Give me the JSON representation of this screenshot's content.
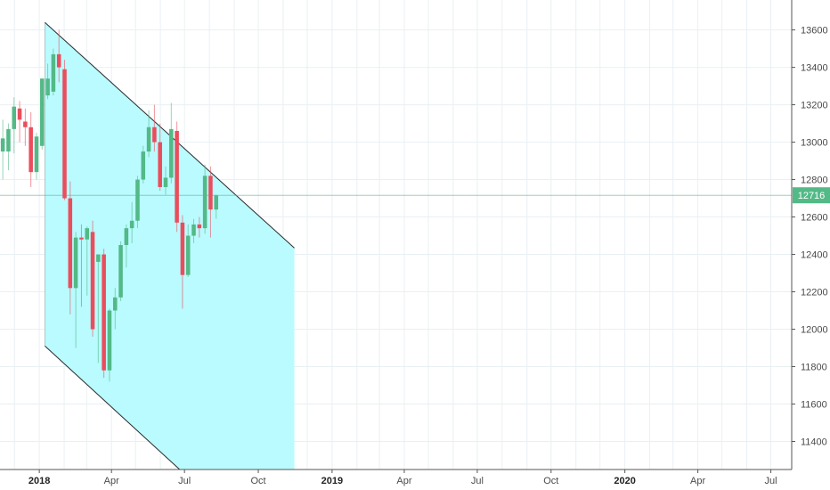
{
  "chart_data": {
    "type": "candlestick",
    "title": "",
    "xlabel": "",
    "ylabel": "",
    "ylim": [
      11250,
      13760
    ],
    "xlim": [
      "2017-11-13",
      "2020-07-27"
    ],
    "y_ticks": [
      11400,
      11600,
      11800,
      12000,
      12200,
      12400,
      12600,
      12800,
      13000,
      13200,
      13400,
      13600
    ],
    "x_ticks": [
      {
        "date": "2018-01-01",
        "label": "2018",
        "year": true
      },
      {
        "date": "2018-04-01",
        "label": "Apr",
        "year": false
      },
      {
        "date": "2018-07-01",
        "label": "Jul",
        "year": false
      },
      {
        "date": "2018-10-01",
        "label": "Oct",
        "year": false
      },
      {
        "date": "2019-01-01",
        "label": "2019",
        "year": true
      },
      {
        "date": "2019-04-01",
        "label": "Apr",
        "year": false
      },
      {
        "date": "2019-07-01",
        "label": "Jul",
        "year": false
      },
      {
        "date": "2019-10-01",
        "label": "Oct",
        "year": false
      },
      {
        "date": "2020-01-01",
        "label": "2020",
        "year": true
      },
      {
        "date": "2020-04-01",
        "label": "Apr",
        "year": false
      },
      {
        "date": "2020-07-01",
        "label": "Jul",
        "year": false
      }
    ],
    "grid": true,
    "last_price": 12716,
    "colors": {
      "up": "#53b987",
      "down": "#eb4d5c",
      "channel_fill": "#b9fbff",
      "channel_line": "#2b2b2b",
      "price_line": "#53b987",
      "grid": "#e9f0f3",
      "axis": "#555555"
    },
    "channel": {
      "upper_start": {
        "date": "2018-01-08",
        "value": 13640
      },
      "upper_end": {
        "date": "2018-10-29",
        "value": 12500
      },
      "lower_start": {
        "date": "2018-01-08",
        "value": 11910
      },
      "lower_end": {
        "date": "2018-06-25",
        "value": 11250
      },
      "fill_end_date": "2018-11-15"
    },
    "candles": [
      {
        "date": "2017-11-13",
        "open": 12950,
        "high": 13120,
        "low": 12800,
        "close": 13020
      },
      {
        "date": "2017-11-20",
        "open": 12950,
        "high": 13100,
        "low": 12850,
        "close": 13070
      },
      {
        "date": "2017-11-27",
        "open": 13070,
        "high": 13240,
        "low": 12940,
        "close": 13190
      },
      {
        "date": "2017-12-04",
        "open": 13180,
        "high": 13220,
        "low": 13000,
        "close": 13120
      },
      {
        "date": "2017-12-11",
        "open": 13110,
        "high": 13180,
        "low": 12980,
        "close": 13080
      },
      {
        "date": "2017-12-18",
        "open": 13080,
        "high": 13160,
        "low": 12760,
        "close": 12840
      },
      {
        "date": "2017-12-25",
        "open": 12840,
        "high": 13050,
        "low": 12800,
        "close": 13030
      },
      {
        "date": "2018-01-01",
        "open": 12980,
        "high": 13340,
        "low": 12960,
        "close": 13340
      },
      {
        "date": "2018-01-08",
        "open": 13250,
        "high": 13420,
        "low": 13230,
        "close": 13340
      },
      {
        "date": "2018-01-15",
        "open": 13270,
        "high": 13500,
        "low": 13250,
        "close": 13470
      },
      {
        "date": "2018-01-22",
        "open": 13470,
        "high": 13600,
        "low": 13320,
        "close": 13400
      },
      {
        "date": "2018-01-29",
        "open": 13390,
        "high": 13440,
        "low": 12690,
        "close": 12700
      },
      {
        "date": "2018-02-05",
        "open": 12700,
        "high": 12790,
        "low": 12080,
        "close": 12220
      },
      {
        "date": "2018-02-12",
        "open": 12220,
        "high": 12520,
        "low": 11900,
        "close": 12490
      },
      {
        "date": "2018-02-19",
        "open": 12490,
        "high": 12560,
        "low": 12120,
        "close": 12480
      },
      {
        "date": "2018-02-26",
        "open": 12480,
        "high": 12550,
        "low": 12180,
        "close": 12540
      },
      {
        "date": "2018-03-05",
        "open": 12520,
        "high": 12580,
        "low": 11960,
        "close": 12000
      },
      {
        "date": "2018-03-12",
        "open": 12360,
        "high": 12400,
        "low": 11820,
        "close": 12400
      },
      {
        "date": "2018-03-19",
        "open": 12400,
        "high": 12430,
        "low": 11740,
        "close": 11780
      },
      {
        "date": "2018-03-26",
        "open": 11780,
        "high": 12110,
        "low": 11720,
        "close": 12100
      },
      {
        "date": "2018-04-02",
        "open": 12100,
        "high": 12220,
        "low": 12000,
        "close": 12170
      },
      {
        "date": "2018-04-09",
        "open": 12170,
        "high": 12470,
        "low": 12150,
        "close": 12450
      },
      {
        "date": "2018-04-16",
        "open": 12450,
        "high": 12560,
        "low": 12330,
        "close": 12540
      },
      {
        "date": "2018-04-23",
        "open": 12540,
        "high": 12680,
        "low": 12460,
        "close": 12580
      },
      {
        "date": "2018-04-30",
        "open": 12580,
        "high": 12820,
        "low": 12540,
        "close": 12800
      },
      {
        "date": "2018-05-07",
        "open": 12800,
        "high": 12980,
        "low": 12780,
        "close": 12950
      },
      {
        "date": "2018-05-14",
        "open": 12950,
        "high": 13170,
        "low": 12920,
        "close": 13080
      },
      {
        "date": "2018-05-21",
        "open": 13080,
        "high": 13200,
        "low": 12950,
        "close": 13000
      },
      {
        "date": "2018-05-28",
        "open": 13000,
        "high": 13100,
        "low": 12740,
        "close": 12760
      },
      {
        "date": "2018-06-04",
        "open": 12760,
        "high": 12870,
        "low": 12720,
        "close": 12810
      },
      {
        "date": "2018-06-11",
        "open": 12810,
        "high": 13210,
        "low": 12780,
        "close": 13070
      },
      {
        "date": "2018-06-18",
        "open": 13060,
        "high": 13110,
        "low": 12520,
        "close": 12570
      },
      {
        "date": "2018-06-25",
        "open": 12570,
        "high": 12610,
        "low": 12110,
        "close": 12290
      },
      {
        "date": "2018-07-02",
        "open": 12290,
        "high": 12560,
        "low": 12280,
        "close": 12500
      },
      {
        "date": "2018-07-09",
        "open": 12500,
        "high": 12590,
        "low": 12460,
        "close": 12560
      },
      {
        "date": "2018-07-16",
        "open": 12560,
        "high": 12600,
        "low": 12490,
        "close": 12540
      },
      {
        "date": "2018-07-23",
        "open": 12540,
        "high": 12880,
        "low": 12510,
        "close": 12820
      },
      {
        "date": "2018-07-30",
        "open": 12820,
        "high": 12870,
        "low": 12490,
        "close": 12640
      },
      {
        "date": "2018-08-06",
        "open": 12640,
        "high": 12720,
        "low": 12590,
        "close": 12716
      }
    ]
  }
}
